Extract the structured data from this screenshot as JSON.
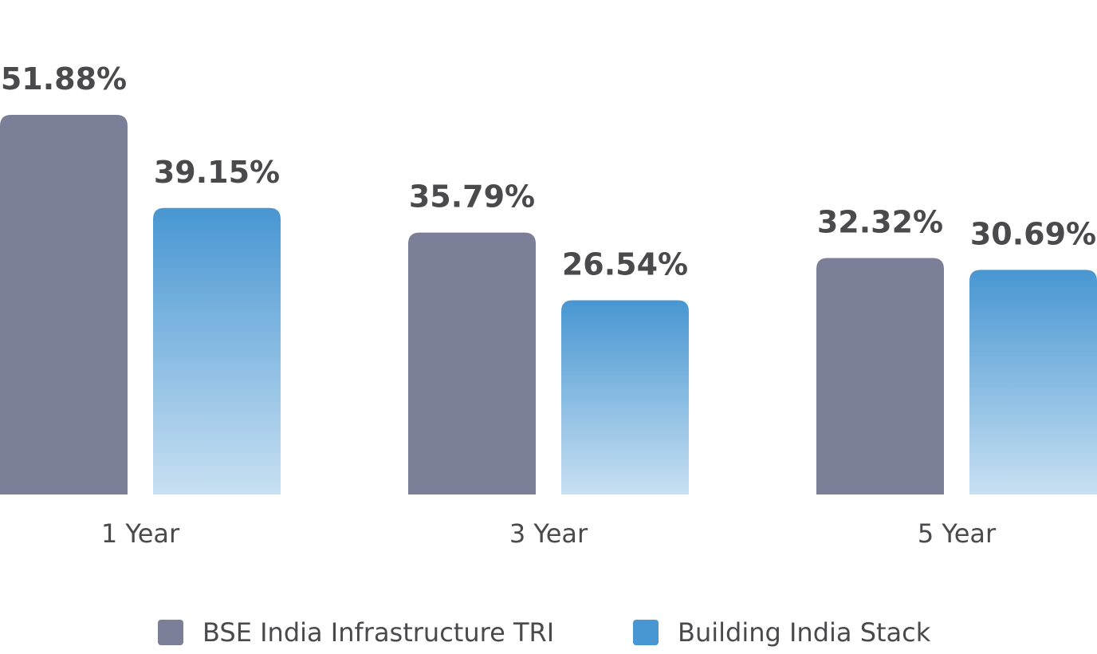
{
  "chart_data": {
    "type": "bar",
    "categories": [
      "1 Year",
      "3 Year",
      "5 Year"
    ],
    "series": [
      {
        "name": "BSE India Infrastructure TRI",
        "values": [
          51.88,
          35.79,
          32.32
        ],
        "labels": [
          "51.88%",
          "35.79%",
          "32.32%"
        ],
        "color": "#7b7f98"
      },
      {
        "name": "Building India Stack",
        "values": [
          39.15,
          26.54,
          30.69
        ],
        "labels": [
          "39.15%",
          "26.54%",
          "30.69%"
        ],
        "color": "#4896d2"
      }
    ],
    "value_suffix": "%",
    "ylim": [
      0,
      51.88
    ],
    "title": "",
    "xlabel": "",
    "ylabel": "",
    "grid": false,
    "legend_position": "bottom-center"
  },
  "legend": {
    "items": [
      {
        "label": "BSE India Infrastructure TRI",
        "color": "#7b7f98"
      },
      {
        "label": "Building India Stack",
        "color": "#4896d2"
      }
    ]
  }
}
